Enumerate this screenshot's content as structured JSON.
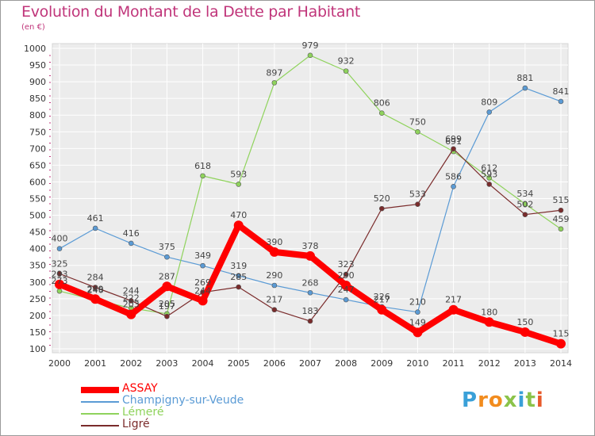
{
  "header": {
    "title": "Evolution du Montant de la Dette par Habitant",
    "subtitle": "(en €)"
  },
  "logo": {
    "letters": [
      "P",
      "r",
      "o",
      "x",
      "i",
      "t",
      "i"
    ],
    "colors": [
      "#3aa0d8",
      "#f28c1e",
      "#f28c1e",
      "#8bc34a",
      "#3aa0d8",
      "#8bc34a",
      "#e85a2a"
    ]
  },
  "chart_data": {
    "type": "line",
    "x": [
      2000,
      2001,
      2002,
      2003,
      2004,
      2005,
      2006,
      2007,
      2008,
      2009,
      2010,
      2011,
      2012,
      2013,
      2014
    ],
    "ylim": [
      100,
      1000
    ],
    "yticks": [
      100,
      150,
      200,
      250,
      300,
      350,
      400,
      450,
      500,
      550,
      600,
      650,
      700,
      750,
      800,
      850,
      900,
      950,
      1000
    ],
    "grid": true,
    "legend_position": "bottom-left",
    "series": [
      {
        "name": "ASSAY",
        "color": "#ff0000",
        "values": [
          293,
          249,
          203,
          287,
          244,
          470,
          390,
          378,
          290,
          217,
          149,
          217,
          180,
          150,
          115
        ]
      },
      {
        "name": "Champigny-sur-Veude",
        "color": "#5b9bd5",
        "values": [
          400,
          461,
          416,
          375,
          349,
          319,
          290,
          268,
          247,
          226,
          210,
          586,
          809,
          881,
          841
        ]
      },
      {
        "name": "Lémeré",
        "color": "#8fd35c",
        "values": [
          273,
          246,
          222,
          205,
          618,
          593,
          897,
          979,
          932,
          806,
          750,
          691,
          612,
          534,
          459
        ]
      },
      {
        "name": "Ligré",
        "color": "#7a2b2b",
        "values": [
          325,
          284,
          244,
          197,
          269,
          285,
          217,
          183,
          323,
          520,
          533,
          699,
          593,
          502,
          515
        ]
      }
    ]
  }
}
